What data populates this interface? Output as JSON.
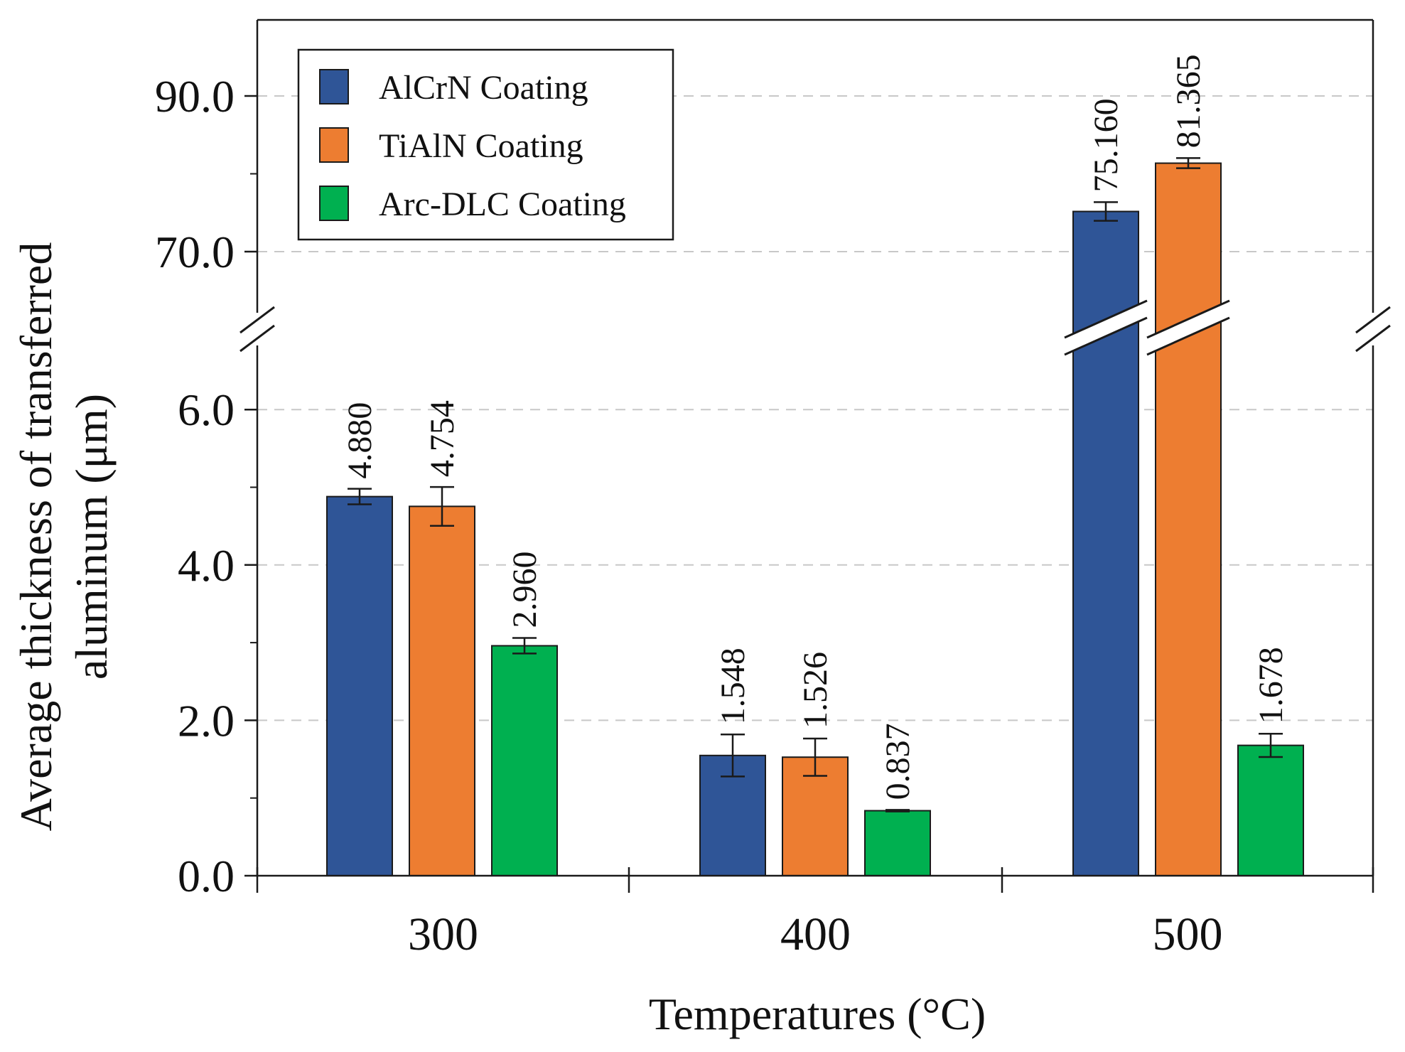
{
  "chart_data": {
    "type": "bar",
    "xlabel": "Temperatures (°C)",
    "ylabel_line1": "Average thickness of transferred",
    "ylabel_line2": "aluminum (μm)",
    "categories": [
      "300",
      "400",
      "500"
    ],
    "series": [
      {
        "name": "AlCrN Coating",
        "color": "#2F5597",
        "values": [
          4.88,
          1.548,
          75.16
        ],
        "errors": [
          0.1,
          0.27,
          1.2
        ],
        "labels": [
          "4.880",
          "1.548",
          "75.160"
        ]
      },
      {
        "name": "TiAlN Coating",
        "color": "#ED7D31",
        "values": [
          4.754,
          1.526,
          81.365
        ],
        "errors": [
          0.25,
          0.24,
          0.65
        ],
        "labels": [
          "4.754",
          "1.526",
          "81.365"
        ]
      },
      {
        "name": "Arc-DLC Coating",
        "color": "#00B050",
        "values": [
          2.96,
          0.837,
          1.678
        ],
        "errors": [
          0.1,
          0.01,
          0.15
        ],
        "labels": [
          "2.960",
          "0.837",
          "1.678"
        ]
      }
    ],
    "axis_break": {
      "lower_range": [
        0,
        6.5
      ],
      "upper_range": [
        67,
        98
      ]
    },
    "lower_ticks": [
      {
        "value": 0,
        "label": "0.0"
      },
      {
        "value": 2,
        "label": "2.0"
      },
      {
        "value": 4,
        "label": "4.0"
      },
      {
        "value": 6,
        "label": "6.0"
      }
    ],
    "upper_ticks": [
      {
        "value": 70,
        "label": "70.0"
      },
      {
        "value": 90,
        "label": "90.0"
      }
    ],
    "lower_minor_ticks": [
      1,
      3,
      5
    ],
    "upper_minor_ticks": [
      80
    ],
    "gridlines": "horizontal-dashed",
    "legend_position": "top-left"
  }
}
